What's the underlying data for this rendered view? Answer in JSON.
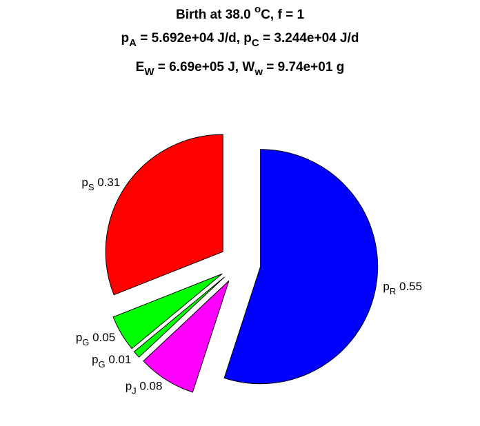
{
  "title": {
    "line1": "Birth at 38.0 ",
    "line1_deg": "o",
    "line1_rest": "C, f = 1",
    "pA_sym": "p",
    "pA_sub": "A",
    "pA_val": " = 5.692e+04 J/d, ",
    "pC_sym": "p",
    "pC_sub": "C",
    "pC_val": " = 3.244e+04 J/d",
    "EW_sym": "E",
    "EW_sub": "W",
    "EW_val": " = 6.69e+05 J, ",
    "Ww_sym": "W",
    "Ww_sub": "w",
    "Ww_val": " = 9.74e+01 g"
  },
  "chart_data": {
    "type": "pie",
    "start_angle_deg": 90,
    "direction": "clockwise",
    "exploded": true,
    "slices": [
      {
        "label": "p",
        "sub": "R",
        "value_text": "0.55",
        "value": 0.55,
        "color": "#0000ff"
      },
      {
        "label": "p",
        "sub": "J",
        "value_text": "0.08",
        "value": 0.08,
        "color": "#ff00ff"
      },
      {
        "label": "p",
        "sub": "G",
        "value_text": "0.01",
        "value": 0.01,
        "color": "#00ff00"
      },
      {
        "label": "p",
        "sub": "G",
        "value_text": "0.05",
        "value": 0.05,
        "color": "#00ff00"
      },
      {
        "label": "p",
        "sub": "S",
        "value_text": "0.31",
        "value": 0.31,
        "color": "#ff0000"
      }
    ]
  }
}
